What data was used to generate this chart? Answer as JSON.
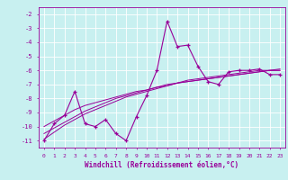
{
  "xlabel": "Windchill (Refroidissement éolien,°C)",
  "bg_color": "#c8f0f0",
  "line_color": "#990099",
  "grid_color": "#ffffff",
  "x_data": [
    0,
    1,
    2,
    3,
    4,
    5,
    6,
    7,
    8,
    9,
    10,
    11,
    12,
    13,
    14,
    15,
    16,
    17,
    18,
    19,
    20,
    21,
    22,
    23
  ],
  "y_main": [
    -11.0,
    -9.8,
    -9.2,
    -7.5,
    -9.8,
    -10.0,
    -9.5,
    -10.5,
    -11.0,
    -9.3,
    -7.8,
    -6.0,
    -2.5,
    -4.3,
    -4.2,
    -5.7,
    -6.8,
    -7.0,
    -6.1,
    -6.0,
    -6.0,
    -5.9,
    -6.3,
    -6.3
  ],
  "y_reg1": [
    -10.5,
    -10.1,
    -9.7,
    -9.3,
    -8.9,
    -8.6,
    -8.3,
    -8.0,
    -7.8,
    -7.6,
    -7.4,
    -7.2,
    -7.1,
    -6.9,
    -6.8,
    -6.7,
    -6.6,
    -6.5,
    -6.4,
    -6.3,
    -6.2,
    -6.1,
    -6.0,
    -6.0
  ],
  "y_reg2": [
    -10.0,
    -9.6,
    -9.2,
    -8.8,
    -8.5,
    -8.3,
    -8.1,
    -7.9,
    -7.7,
    -7.5,
    -7.4,
    -7.2,
    -7.0,
    -6.9,
    -6.7,
    -6.6,
    -6.5,
    -6.4,
    -6.3,
    -6.2,
    -6.1,
    -6.0,
    -6.0,
    -5.9
  ],
  "y_reg3": [
    -10.9,
    -10.4,
    -9.9,
    -9.5,
    -9.1,
    -8.8,
    -8.5,
    -8.2,
    -7.9,
    -7.7,
    -7.5,
    -7.3,
    -7.1,
    -6.9,
    -6.8,
    -6.7,
    -6.6,
    -6.5,
    -6.4,
    -6.3,
    -6.2,
    -6.1,
    -6.0,
    -6.0
  ],
  "ylim": [
    -11.5,
    -1.5
  ],
  "xlim": [
    -0.5,
    23.5
  ],
  "yticks": [
    -2,
    -3,
    -4,
    -5,
    -6,
    -7,
    -8,
    -9,
    -10,
    -11
  ],
  "xticks": [
    0,
    1,
    2,
    3,
    4,
    5,
    6,
    7,
    8,
    9,
    10,
    11,
    12,
    13,
    14,
    15,
    16,
    17,
    18,
    19,
    20,
    21,
    22,
    23
  ]
}
